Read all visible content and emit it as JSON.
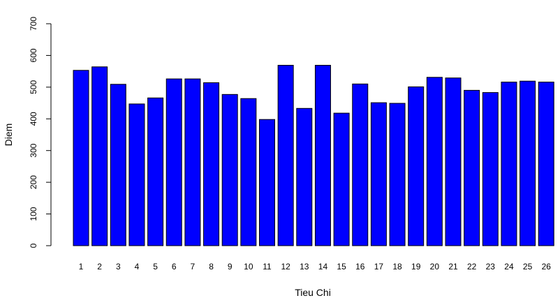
{
  "chart_data": {
    "type": "bar",
    "xlabel": "Tieu Chi",
    "ylabel": "Diem",
    "categories": [
      "1",
      "2",
      "3",
      "4",
      "5",
      "6",
      "7",
      "8",
      "9",
      "10",
      "11",
      "12",
      "13",
      "14",
      "15",
      "16",
      "17",
      "18",
      "19",
      "20",
      "21",
      "22",
      "23",
      "24",
      "25",
      "26"
    ],
    "values": [
      553,
      564,
      509,
      447,
      466,
      526,
      526,
      514,
      477,
      464,
      398,
      569,
      433,
      569,
      418,
      510,
      451,
      449,
      501,
      531,
      529,
      490,
      483,
      516,
      519,
      516
    ],
    "ylim": [
      0,
      700
    ],
    "yticks": [
      0,
      100,
      200,
      300,
      400,
      500,
      600,
      700
    ],
    "grid": false,
    "legend": "none",
    "bar_color": "#0000ff",
    "bar_border_color": "#000000"
  }
}
